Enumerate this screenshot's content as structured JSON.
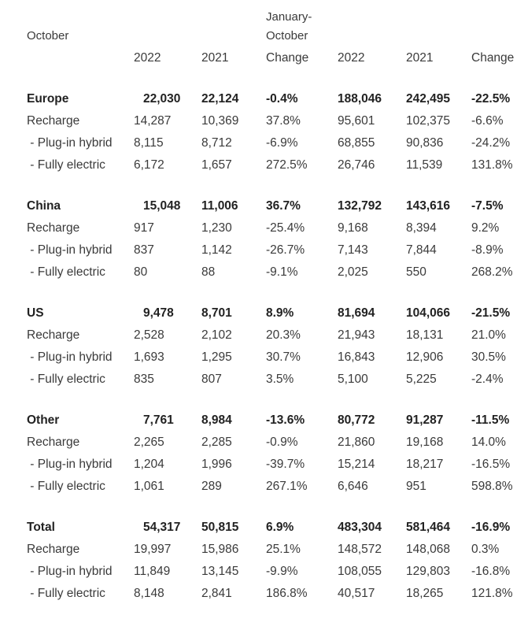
{
  "header": {
    "month": "October",
    "ytd_line1": "January-",
    "ytd_line2": "October",
    "columns": [
      "2022",
      "2021",
      "Change",
      "2022",
      "2021",
      "Change"
    ]
  },
  "regions": [
    {
      "name": "Europe",
      "values": [
        "22,030",
        "22,124",
        "-0.4%",
        "188,046",
        "242,495",
        "-22.5%"
      ],
      "rows": [
        {
          "label": "Recharge",
          "values": [
            "14,287",
            "10,369",
            "37.8%",
            "95,601",
            "102,375",
            "-6.6%"
          ]
        },
        {
          "label": " - Plug-in hybrid",
          "values": [
            "8,115",
            "8,712",
            "-6.9%",
            "68,855",
            "90,836",
            "-24.2%"
          ]
        },
        {
          "label": " - Fully electric",
          "values": [
            "6,172",
            "1,657",
            "272.5%",
            "26,746",
            "11,539",
            "131.8%"
          ]
        }
      ]
    },
    {
      "name": "China",
      "values": [
        "15,048",
        "11,006",
        "36.7%",
        "132,792",
        "143,616",
        "-7.5%"
      ],
      "rows": [
        {
          "label": "Recharge",
          "values": [
            "917",
            "1,230",
            "-25.4%",
            "9,168",
            "8,394",
            "9.2%"
          ]
        },
        {
          "label": " - Plug-in hybrid",
          "values": [
            "837",
            "1,142",
            "-26.7%",
            "7,143",
            "7,844",
            "-8.9%"
          ]
        },
        {
          "label": " - Fully electric",
          "values": [
            "80",
            "88",
            "-9.1%",
            "2,025",
            "550",
            "268.2%"
          ]
        }
      ]
    },
    {
      "name": "US",
      "values": [
        "9,478",
        "8,701",
        "8.9%",
        "81,694",
        "104,066",
        "-21.5%"
      ],
      "rows": [
        {
          "label": "Recharge",
          "values": [
            "2,528",
            "2,102",
            "20.3%",
            "21,943",
            "18,131",
            "21.0%"
          ]
        },
        {
          "label": " - Plug-in hybrid",
          "values": [
            "1,693",
            "1,295",
            "30.7%",
            "16,843",
            "12,906",
            "30.5%"
          ]
        },
        {
          "label": " - Fully electric",
          "values": [
            "835",
            "807",
            "3.5%",
            "5,100",
            "5,225",
            "-2.4%"
          ]
        }
      ]
    },
    {
      "name": "Other",
      "values": [
        "7,761",
        "8,984",
        "-13.6%",
        "80,772",
        "91,287",
        "-11.5%"
      ],
      "rows": [
        {
          "label": "Recharge",
          "values": [
            "2,265",
            "2,285",
            "-0.9%",
            "21,860",
            "19,168",
            "14.0%"
          ]
        },
        {
          "label": " - Plug-in hybrid",
          "values": [
            "1,204",
            "1,996",
            "-39.7%",
            "15,214",
            "18,217",
            "-16.5%"
          ]
        },
        {
          "label": " - Fully electric",
          "values": [
            "1,061",
            "289",
            "267.1%",
            "6,646",
            "951",
            "598.8%"
          ]
        }
      ]
    },
    {
      "name": "Total",
      "values": [
        "54,317",
        "50,815",
        "6.9%",
        "483,304",
        "581,464",
        "-16.9%"
      ],
      "rows": [
        {
          "label": "Recharge",
          "values": [
            "19,997",
            "15,986",
            "25.1%",
            "148,572",
            "148,068",
            "0.3%"
          ]
        },
        {
          "label": " - Plug-in hybrid",
          "values": [
            "11,849",
            "13,145",
            "-9.9%",
            "108,055",
            "129,803",
            "-16.8%"
          ]
        },
        {
          "label": " - Fully electric",
          "values": [
            "8,148",
            "2,841",
            "186.8%",
            "40,517",
            "18,265",
            "121.8%"
          ]
        }
      ]
    }
  ]
}
